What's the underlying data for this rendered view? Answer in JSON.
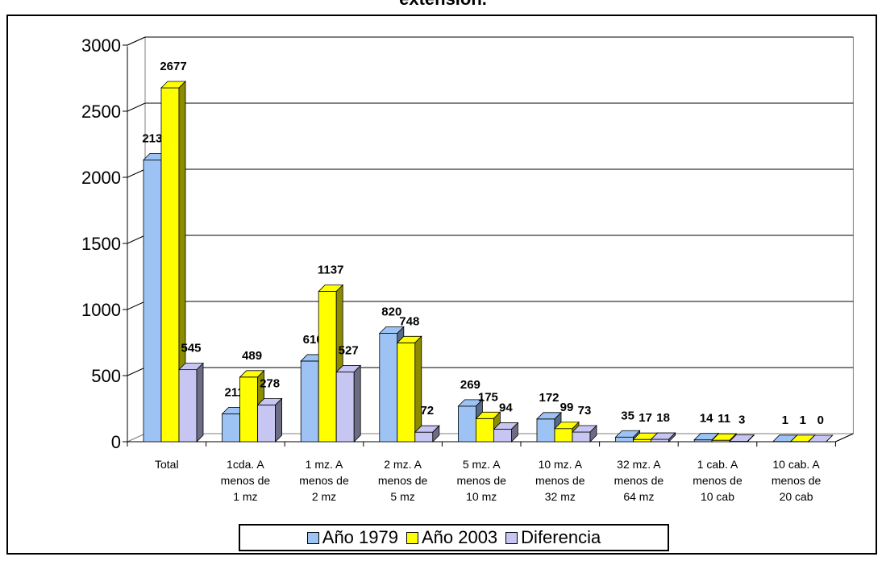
{
  "chart_data": {
    "type": "bar",
    "title": "extensión.",
    "categories": [
      [
        "Total"
      ],
      [
        "1cda. A",
        "menos de",
        "1 mz"
      ],
      [
        "1 mz. A",
        "menos de",
        "2 mz"
      ],
      [
        "2 mz. A",
        "menos de",
        "5 mz"
      ],
      [
        "5 mz. A",
        "menos de",
        "10 mz"
      ],
      [
        "10 mz. A",
        "menos de",
        "32 mz"
      ],
      [
        "32 mz. A",
        "menos de",
        "64 mz"
      ],
      [
        "1 cab. A",
        "menos de",
        "10 cab"
      ],
      [
        "10 cab. A",
        "menos de",
        "20 cab"
      ]
    ],
    "series": [
      {
        "name": "Año 1979",
        "color": "#9DC3F5",
        "values": [
          2132,
          211,
          610,
          820,
          269,
          172,
          35,
          14,
          1
        ]
      },
      {
        "name": "Año 2003",
        "color": "#FFFF00",
        "values": [
          2677,
          489,
          1137,
          748,
          175,
          99,
          17,
          11,
          1
        ]
      },
      {
        "name": "Diferencia",
        "color": "#C7C5F2",
        "values": [
          545,
          278,
          527,
          72,
          94,
          73,
          18,
          3,
          0
        ]
      }
    ],
    "ylim": [
      0,
      3000
    ],
    "yticks": [
      "0",
      "500",
      "1000",
      "1500",
      "2000",
      "2500",
      "3000"
    ],
    "grid": true,
    "legend": "bottom"
  }
}
